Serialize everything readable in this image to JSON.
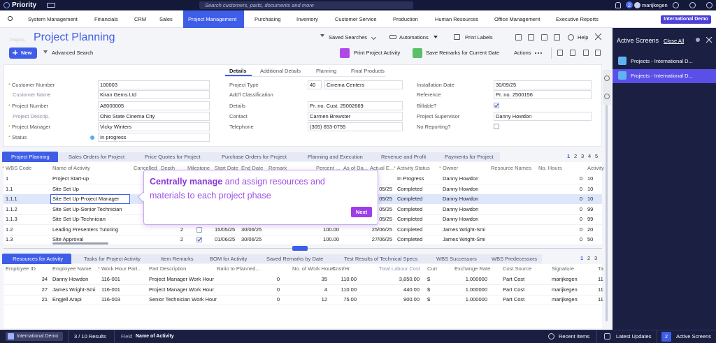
{
  "top_bar": {
    "brand": "Priority",
    "search_placeholder": "Search customers, parts, documents and more",
    "notifications": "2",
    "user": "marijkegen"
  },
  "menu": {
    "items": [
      "System Management",
      "Financials",
      "CRM",
      "Sales",
      "Project Management",
      "Purchasing",
      "Inventory",
      "Customer Service",
      "Production",
      "Human Resources",
      "Office Management",
      "Executive Reports"
    ],
    "active": 4,
    "company_button": "International Demo"
  },
  "page": {
    "breadcrumb": "Projects",
    "title": "Project Planning",
    "toolbar": {
      "saved_searches": "Saved Searches",
      "automations": "Automations",
      "print_labels": "Print Labels",
      "help": "Help"
    },
    "actions": {
      "new": "New",
      "advanced_search": "Advanced Search",
      "print_activity": "Print Project Activity",
      "save_remarks": "Save Remarks for Current Date",
      "actions": "Actions"
    }
  },
  "form": {
    "tabs": [
      "Details",
      "Additional Details",
      "Planning",
      "Final Products"
    ],
    "left": [
      {
        "label": "Customer Number",
        "value": "100003",
        "required": true
      },
      {
        "label": "Customer Name",
        "value": "Kiran Gems Ltd",
        "required": false
      },
      {
        "label": "Project Number",
        "value": "A8000005",
        "required": true
      },
      {
        "label": "Project Descrip.",
        "value": "Ohio State Cinema City",
        "required": false
      },
      {
        "label": "Project Manager",
        "value": "Vicky Winters",
        "required": true
      },
      {
        "label": "Status",
        "value": "In progress",
        "required": true
      }
    ],
    "middle": [
      {
        "label": "Project Type",
        "code": "40",
        "value": "Cinema Centers"
      },
      {
        "label": "Add'l Classification"
      },
      {
        "label": "Details",
        "value": "Pr. no. Cust. 25002669"
      },
      {
        "label": "Contact",
        "value": "Carmen Brewster"
      },
      {
        "label": "Telephone",
        "value": "(305) 653-0755"
      }
    ],
    "right": [
      {
        "label": "Installation Date",
        "value": "30/09/25"
      },
      {
        "label": "Reference",
        "value": "Pr. no. 2500156"
      },
      {
        "label": "Billable?",
        "checked": true
      },
      {
        "label": "Project Supervisor",
        "value": "Danny Howdon"
      },
      {
        "label": "No Reporting?",
        "checked": false
      }
    ]
  },
  "upper_tabs": {
    "items": [
      "Project Planning",
      "Sales Orders for Project",
      "Price Quotes for Project",
      "Purchase Orders for Project",
      "Planning and Execution",
      "Revenue and Profit",
      "Payments for Project"
    ],
    "pages": [
      "1",
      "2",
      "3",
      "4",
      "5"
    ]
  },
  "upper_table": {
    "columns": [
      {
        "label": "WBS Code",
        "required": true
      },
      {
        "label": "Name of Activity"
      },
      {
        "label": "Cancelled"
      },
      {
        "label": "Depth"
      },
      {
        "label": "Milestone"
      },
      {
        "label": "Start Date"
      },
      {
        "label": "End Date"
      },
      {
        "label": "Remark"
      },
      {
        "label": "Percent ..."
      },
      {
        "label": "As of Da..."
      },
      {
        "label": "Actual E..."
      },
      {
        "label": "Activity Status",
        "required": true
      },
      {
        "label": "Owner",
        "required": true
      },
      {
        "label": "Resource Names"
      },
      {
        "label": "No. Hours"
      },
      {
        "label": "Activity"
      }
    ],
    "rows": [
      [
        "1",
        "Project Start-up",
        null,
        null,
        null,
        null,
        null,
        null,
        null,
        null,
        null,
        "In Progress",
        "Danny Howdon",
        null,
        "0",
        "10"
      ],
      [
        "1.1",
        "Site Set Up",
        null,
        null,
        null,
        null,
        null,
        null,
        null,
        null,
        "05/25",
        "Completed",
        "Danny Howdon",
        null,
        "0",
        "10"
      ],
      [
        "1.1.1",
        "Site Set Up-Project Manager",
        null,
        null,
        null,
        null,
        null,
        null,
        null,
        null,
        "05/25",
        "Completed",
        "Danny Howdon",
        null,
        "0",
        "10"
      ],
      [
        "1.1.2",
        "Site Set Up-Senior Technician",
        null,
        null,
        null,
        null,
        null,
        null,
        null,
        null,
        "05/25",
        "Completed",
        "Danny Howdon",
        null,
        "0",
        "99"
      ],
      [
        "1.1.3",
        "Site Set Up-Technician",
        null,
        null,
        null,
        null,
        null,
        null,
        null,
        null,
        "05/25",
        "Completed",
        "Danny Howdon",
        null,
        "0",
        "99"
      ],
      [
        "1.2",
        "Leading Presenters Tutoring",
        null,
        "2",
        false,
        "15/05/25",
        "30/06/25",
        null,
        "100.00",
        null,
        "25/06/25",
        "Completed",
        "James Wright-Smi",
        null,
        "0",
        "20"
      ],
      [
        "1.3",
        "Site Approval",
        null,
        "2",
        true,
        "01/06/25",
        "30/06/25",
        null,
        "100.00",
        null,
        "27/06/25",
        "Completed",
        "James Wright-Smi",
        null,
        "0",
        "50"
      ]
    ],
    "selected_row": 2
  },
  "tooltip": {
    "bold": "Centrally manage",
    "text": "and assign resources and materials to each project phase",
    "button": "Next"
  },
  "lower_tabs": {
    "items": [
      "Resources for Activity",
      "Tasks for Project Activity",
      "Item Remarks",
      "BOM for Activity",
      "Saved Remarks by Date",
      "Test Results of Technical Specs",
      "WBS Successors",
      "WBS Predecessors"
    ],
    "pages": [
      "1",
      "2",
      "3"
    ]
  },
  "lower_table": {
    "columns": [
      {
        "label": "Employee ID"
      },
      {
        "label": "Employee Name"
      },
      {
        "label": "Work Hour Part...",
        "required": true
      },
      {
        "label": "Part Description"
      },
      {
        "label": "Ratio to Planned..."
      },
      {
        "label": "No. of Work Hours"
      },
      {
        "label": "Cost/Hr"
      },
      {
        "label": "Total Labour Cost"
      },
      {
        "label": "Curr"
      },
      {
        "label": "Exchange Rate"
      },
      {
        "label": "Cost Source"
      },
      {
        "label": "Signature"
      },
      {
        "label": "Ta"
      }
    ],
    "rows": [
      [
        "34",
        "Danny Howdon",
        "116-001",
        "Project Manager Work Hour",
        "0",
        "35",
        "110.00",
        "3,850.00",
        "$",
        "1.000000",
        "Part Cost",
        "marijkegen",
        "11"
      ],
      [
        "27",
        "James Wright-Smi",
        "116-001",
        "Project Manager Work Hour",
        "0",
        "4",
        "110.00",
        "440.00",
        "$",
        "1.000000",
        "Part Cost",
        "marijkegen",
        "11"
      ],
      [
        "21",
        "Engjell Arapi",
        "116-003",
        "Senior Technician Work Hour",
        "0",
        "12",
        "75.00",
        "900.00",
        "$",
        "1.000000",
        "Part Cost",
        "marijkegen",
        "11"
      ]
    ]
  },
  "side_panel": {
    "title": "Active Screens",
    "close_all": "Close All",
    "items": [
      "Projects - International D...",
      "Projects - International D..."
    ],
    "active": 1
  },
  "status_bar": {
    "company": "International Demo",
    "results": "3 / 10 Results",
    "field_label": "Field",
    "field_value": "Name of Activity",
    "recent": "Recent Items",
    "updates": "Latest Updates",
    "active_screens": "Active Screens",
    "active_count": "2"
  }
}
